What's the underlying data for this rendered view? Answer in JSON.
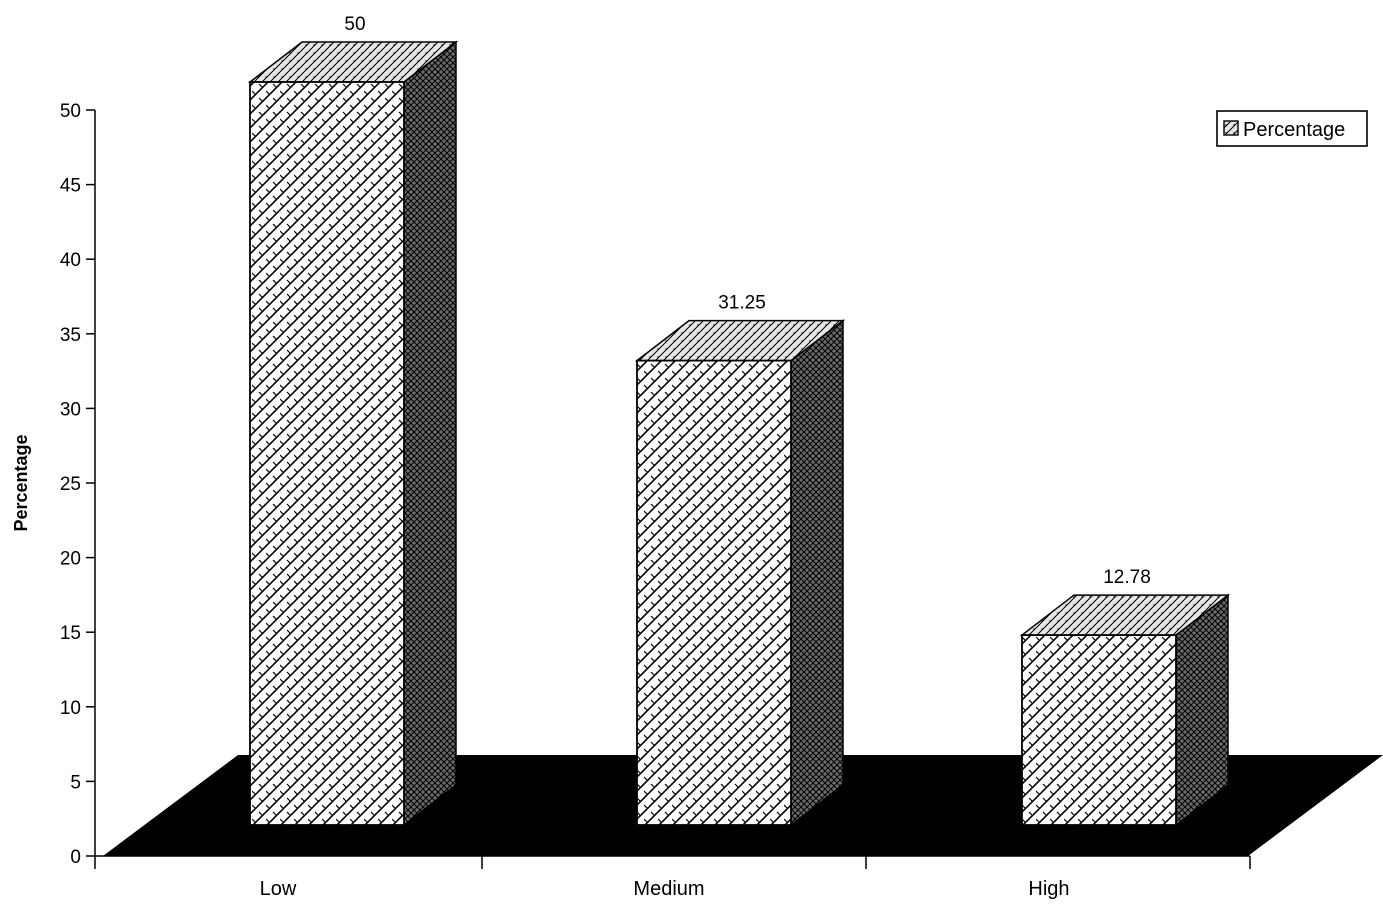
{
  "chart_data": {
    "type": "bar",
    "categories": [
      "Low",
      "Medium",
      "High"
    ],
    "series": [
      {
        "name": "Percentage",
        "values": [
          50,
          31.25,
          12.78
        ]
      }
    ],
    "data_labels": [
      "50",
      "31.25",
      "12.78"
    ],
    "ylabel": "Percentage",
    "xlabel": "",
    "ylim": [
      0,
      50
    ],
    "yticks": [
      0,
      5,
      10,
      15,
      20,
      25,
      30,
      35,
      40,
      45,
      50
    ],
    "legend": {
      "label": "Percentage",
      "position": "top-right"
    },
    "grid": false,
    "style": "3d-hatched"
  }
}
